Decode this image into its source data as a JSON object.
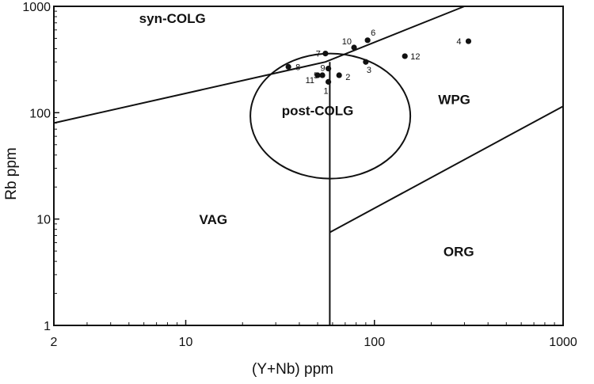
{
  "chart_data": {
    "type": "scatter",
    "title": "",
    "xlabel": "(Y+Nb) ppm",
    "ylabel": "Rb ppm",
    "xscale": "log",
    "yscale": "log",
    "xlim": [
      2,
      1000
    ],
    "ylim": [
      1,
      1000
    ],
    "grid": false,
    "x_ticks": [
      {
        "value": 2,
        "label": "2"
      },
      {
        "value": 10,
        "label": "10"
      },
      {
        "value": 100,
        "label": "100"
      },
      {
        "value": 1000,
        "label": "1000"
      }
    ],
    "y_ticks": [
      {
        "value": 1,
        "label": "1"
      },
      {
        "value": 10,
        "label": "10"
      },
      {
        "value": 100,
        "label": "100"
      },
      {
        "value": 1000,
        "label": "1000"
      }
    ],
    "boundaries": [
      {
        "points": [
          [
            2,
            80
          ],
          [
            55,
            300
          ],
          [
            300,
            1000
          ]
        ]
      },
      {
        "points": [
          [
            58,
            1
          ],
          [
            58,
            300
          ]
        ]
      },
      {
        "points": [
          [
            58,
            7.5
          ],
          [
            1000,
            115
          ]
        ]
      }
    ],
    "ellipse": {
      "x_range": [
        22,
        155
      ],
      "y_range": [
        24,
        360
      ]
    },
    "fields": [
      {
        "label": "syn-COLG",
        "x": 8.5,
        "y": 700
      },
      {
        "label": "WPG",
        "x": 265,
        "y": 120
      },
      {
        "label": "post-COLG",
        "x": 50,
        "y": 95
      },
      {
        "label": "VAG",
        "x": 14,
        "y": 9
      },
      {
        "label": "ORG",
        "x": 280,
        "y": 4.5
      }
    ],
    "points": [
      {
        "label": "1",
        "x": 57,
        "y": 195
      },
      {
        "label": "2",
        "x": 65,
        "y": 225
      },
      {
        "label": "3",
        "x": 90,
        "y": 300
      },
      {
        "label": "4",
        "x": 315,
        "y": 470
      },
      {
        "label": "5",
        "x": 53,
        "y": 225
      },
      {
        "label": "6",
        "x": 92,
        "y": 480
      },
      {
        "label": "7",
        "x": 55,
        "y": 360
      },
      {
        "label": "8",
        "x": 35,
        "y": 270
      },
      {
        "label": "9",
        "x": 57,
        "y": 260
      },
      {
        "label": "10",
        "x": 78,
        "y": 410
      },
      {
        "label": "11",
        "x": 50,
        "y": 225
      },
      {
        "label": "12",
        "x": 145,
        "y": 340
      }
    ]
  }
}
